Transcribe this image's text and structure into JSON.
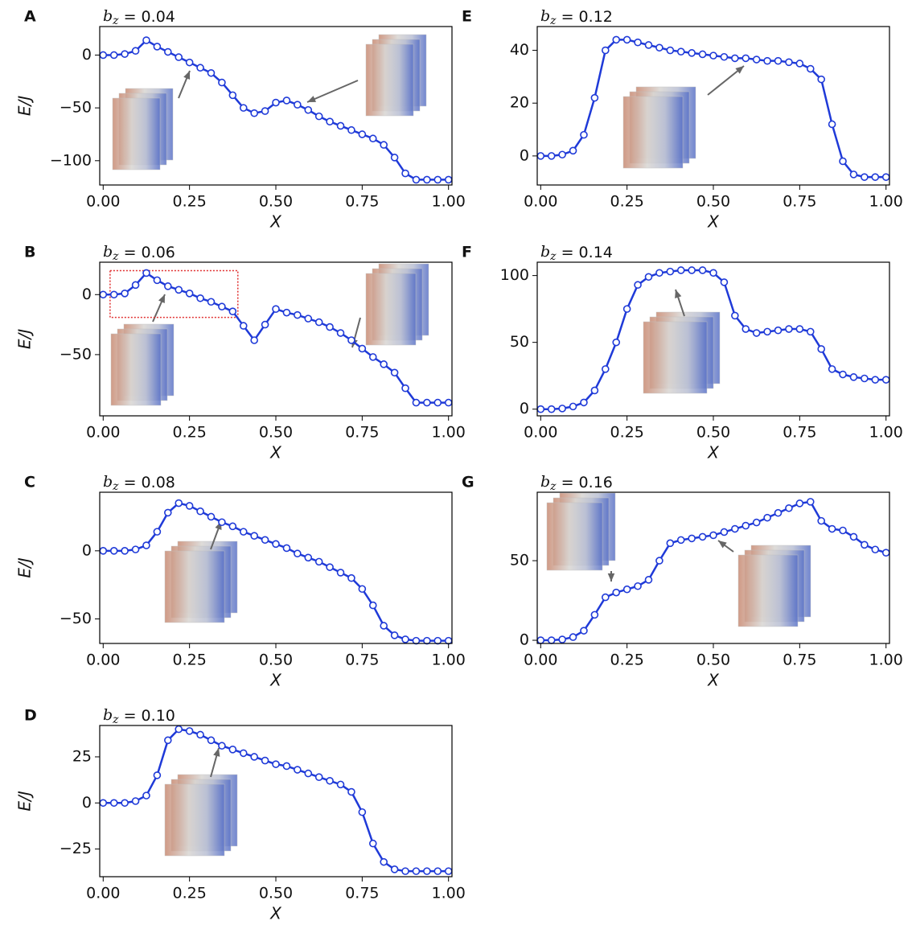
{
  "chart_data": [
    {
      "type": "line",
      "panel_label": "A",
      "title": [
        "b",
        "z",
        " = 0.04"
      ],
      "xlabel": "X",
      "ylabel": "E/J",
      "color": "#1f3ad8",
      "x": [
        0,
        0.03125,
        0.0625,
        0.09375,
        0.125,
        0.15625,
        0.1875,
        0.21875,
        0.25,
        0.28125,
        0.3125,
        0.34375,
        0.375,
        0.40625,
        0.4375,
        0.46875,
        0.5,
        0.53125,
        0.5625,
        0.59375,
        0.625,
        0.65625,
        0.6875,
        0.71875,
        0.75,
        0.78125,
        0.8125,
        0.84375,
        0.875,
        0.90625,
        0.9375,
        0.96875,
        1
      ],
      "values": [
        0,
        0,
        1,
        4,
        14,
        8,
        3,
        -2,
        -7,
        -12,
        -17,
        -26,
        -38,
        -50,
        -55,
        -53,
        -45,
        -43,
        -47,
        -52,
        -58,
        -63,
        -67,
        -71,
        -75,
        -79,
        -85,
        -97,
        -112,
        -118,
        -118,
        -118,
        -118
      ],
      "xlim": [
        -0.01,
        1.01
      ],
      "ylim": [
        -123,
        27
      ],
      "xticks": [
        {
          "value": 0,
          "label": "0.00"
        },
        {
          "value": 0.25,
          "label": "0.25"
        },
        {
          "value": 0.5,
          "label": "0.50"
        },
        {
          "value": 0.75,
          "label": "0.75"
        },
        {
          "value": 1,
          "label": "1.00"
        }
      ],
      "yticks": [
        {
          "value": -100,
          "label": "−100"
        },
        {
          "value": -50,
          "label": "−50"
        },
        0
      ]
    },
    {
      "type": "line",
      "panel_label": "B",
      "title": [
        "b",
        "z",
        " = 0.06"
      ],
      "xlabel": "X",
      "ylabel": "E/J",
      "color": "#1f3ad8",
      "x": [
        0,
        0.03125,
        0.0625,
        0.09375,
        0.125,
        0.15625,
        0.1875,
        0.21875,
        0.25,
        0.28125,
        0.3125,
        0.34375,
        0.375,
        0.40625,
        0.4375,
        0.46875,
        0.5,
        0.53125,
        0.5625,
        0.59375,
        0.625,
        0.65625,
        0.6875,
        0.71875,
        0.75,
        0.78125,
        0.8125,
        0.84375,
        0.875,
        0.90625,
        0.9375,
        0.96875,
        1
      ],
      "values": [
        0,
        0,
        1,
        8,
        18,
        12,
        7,
        4,
        1,
        -3,
        -6,
        -10,
        -14,
        -26,
        -38,
        -25,
        -12,
        -15,
        -17,
        -20,
        -23,
        -27,
        -32,
        -38,
        -45,
        -52,
        -58,
        -65,
        -78,
        -90,
        -90,
        -90,
        -90
      ],
      "xlim": [
        -0.01,
        1.01
      ],
      "ylim": [
        -101,
        27
      ],
      "xticks": [
        {
          "value": 0,
          "label": "0.00"
        },
        {
          "value": 0.25,
          "label": "0.25"
        },
        {
          "value": 0.5,
          "label": "0.50"
        },
        {
          "value": 0.75,
          "label": "0.75"
        },
        {
          "value": 1,
          "label": "1.00"
        }
      ],
      "yticks": [
        {
          "value": -50,
          "label": "−50"
        },
        0
      ]
    },
    {
      "type": "line",
      "panel_label": "C",
      "title": [
        "b",
        "z",
        " = 0.08"
      ],
      "xlabel": "X",
      "ylabel": "E/J",
      "color": "#1f3ad8",
      "x": [
        0,
        0.03125,
        0.0625,
        0.09375,
        0.125,
        0.15625,
        0.1875,
        0.21875,
        0.25,
        0.28125,
        0.3125,
        0.34375,
        0.375,
        0.40625,
        0.4375,
        0.46875,
        0.5,
        0.53125,
        0.5625,
        0.59375,
        0.625,
        0.65625,
        0.6875,
        0.71875,
        0.75,
        0.78125,
        0.8125,
        0.84375,
        0.875,
        0.90625,
        0.9375,
        0.96875,
        1
      ],
      "values": [
        0,
        0,
        0,
        1,
        4,
        14,
        28,
        35,
        33,
        29,
        25,
        21,
        18,
        14,
        11,
        8,
        5,
        2,
        -2,
        -5,
        -8,
        -12,
        -16,
        -20,
        -28,
        -40,
        -55,
        -62,
        -65,
        -66,
        -66,
        -66,
        -66
      ],
      "xlim": [
        -0.01,
        1.01
      ],
      "ylim": [
        -68,
        43
      ],
      "xticks": [
        {
          "value": 0,
          "label": "0.00"
        },
        {
          "value": 0.25,
          "label": "0.25"
        },
        {
          "value": 0.5,
          "label": "0.50"
        },
        {
          "value": 0.75,
          "label": "0.75"
        },
        {
          "value": 1,
          "label": "1.00"
        }
      ],
      "yticks": [
        {
          "value": -50,
          "label": "−50"
        },
        0
      ]
    },
    {
      "type": "line",
      "panel_label": "D",
      "title": [
        "b",
        "z",
        " = 0.10"
      ],
      "xlabel": "X",
      "ylabel": "E/J",
      "color": "#1f3ad8",
      "x": [
        0,
        0.03125,
        0.0625,
        0.09375,
        0.125,
        0.15625,
        0.1875,
        0.21875,
        0.25,
        0.28125,
        0.3125,
        0.34375,
        0.375,
        0.40625,
        0.4375,
        0.46875,
        0.5,
        0.53125,
        0.5625,
        0.59375,
        0.625,
        0.65625,
        0.6875,
        0.71875,
        0.75,
        0.78125,
        0.8125,
        0.84375,
        0.875,
        0.90625,
        0.9375,
        0.96875,
        1
      ],
      "values": [
        0,
        0,
        0,
        1,
        4,
        15,
        34,
        40,
        39,
        37,
        34,
        31,
        29,
        27,
        25,
        23,
        21,
        20,
        18,
        16,
        14,
        12,
        10,
        6,
        -5,
        -22,
        -32,
        -36,
        -37,
        -37,
        -37,
        -37,
        -37
      ],
      "xlim": [
        -0.01,
        1.01
      ],
      "ylim": [
        -40,
        42
      ],
      "xticks": [
        {
          "value": 0,
          "label": "0.00"
        },
        {
          "value": 0.25,
          "label": "0.25"
        },
        {
          "value": 0.5,
          "label": "0.50"
        },
        {
          "value": 0.75,
          "label": "0.75"
        },
        {
          "value": 1,
          "label": "1.00"
        }
      ],
      "yticks": [
        {
          "value": -25,
          "label": "−25"
        },
        0,
        25
      ]
    },
    {
      "type": "line",
      "panel_label": "E",
      "title": [
        "b",
        "z",
        " = 0.12"
      ],
      "xlabel": "X",
      "color": "#1f3ad8",
      "x": [
        0,
        0.03125,
        0.0625,
        0.09375,
        0.125,
        0.15625,
        0.1875,
        0.21875,
        0.25,
        0.28125,
        0.3125,
        0.34375,
        0.375,
        0.40625,
        0.4375,
        0.46875,
        0.5,
        0.53125,
        0.5625,
        0.59375,
        0.625,
        0.65625,
        0.6875,
        0.71875,
        0.75,
        0.78125,
        0.8125,
        0.84375,
        0.875,
        0.90625,
        0.9375,
        0.96875,
        1
      ],
      "values": [
        0,
        0,
        0.5,
        2,
        8,
        22,
        40,
        44,
        44,
        43,
        42,
        41,
        40,
        39.5,
        39,
        38.5,
        38,
        37.5,
        37,
        37,
        36.5,
        36,
        36,
        35.5,
        35,
        33,
        29,
        12,
        -2,
        -7,
        -8,
        -8,
        -8
      ],
      "xlim": [
        -0.01,
        1.01
      ],
      "ylim": [
        -11,
        49
      ],
      "xticks": [
        {
          "value": 0,
          "label": "0.00"
        },
        {
          "value": 0.25,
          "label": "0.25"
        },
        {
          "value": 0.5,
          "label": "0.50"
        },
        {
          "value": 0.75,
          "label": "0.75"
        },
        {
          "value": 1,
          "label": "1.00"
        }
      ],
      "yticks": [
        0,
        20,
        40
      ]
    },
    {
      "type": "line",
      "panel_label": "F",
      "title": [
        "b",
        "z",
        " = 0.14"
      ],
      "xlabel": "X",
      "color": "#1f3ad8",
      "x": [
        0,
        0.03125,
        0.0625,
        0.09375,
        0.125,
        0.15625,
        0.1875,
        0.21875,
        0.25,
        0.28125,
        0.3125,
        0.34375,
        0.375,
        0.40625,
        0.4375,
        0.46875,
        0.5,
        0.53125,
        0.5625,
        0.59375,
        0.625,
        0.65625,
        0.6875,
        0.71875,
        0.75,
        0.78125,
        0.8125,
        0.84375,
        0.875,
        0.90625,
        0.9375,
        0.96875,
        1
      ],
      "values": [
        0,
        0,
        0.5,
        2,
        5,
        14,
        30,
        50,
        75,
        93,
        99,
        102,
        103,
        104,
        104,
        104,
        102,
        95,
        70,
        60,
        57,
        58,
        59,
        60,
        60,
        58,
        45,
        30,
        26,
        24,
        23,
        22,
        22
      ],
      "xlim": [
        -0.01,
        1.01
      ],
      "ylim": [
        -5,
        110
      ],
      "xticks": [
        {
          "value": 0,
          "label": "0.00"
        },
        {
          "value": 0.25,
          "label": "0.25"
        },
        {
          "value": 0.5,
          "label": "0.50"
        },
        {
          "value": 0.75,
          "label": "0.75"
        },
        {
          "value": 1,
          "label": "1.00"
        }
      ],
      "yticks": [
        0,
        50,
        100
      ]
    },
    {
      "type": "line",
      "panel_label": "G",
      "title": [
        "b",
        "z",
        " = 0.16"
      ],
      "xlabel": "X",
      "color": "#1f3ad8",
      "x": [
        0,
        0.03125,
        0.0625,
        0.09375,
        0.125,
        0.15625,
        0.1875,
        0.21875,
        0.25,
        0.28125,
        0.3125,
        0.34375,
        0.375,
        0.40625,
        0.4375,
        0.46875,
        0.5,
        0.53125,
        0.5625,
        0.59375,
        0.625,
        0.65625,
        0.6875,
        0.71875,
        0.75,
        0.78125,
        0.8125,
        0.84375,
        0.875,
        0.90625,
        0.9375,
        0.96875,
        1
      ],
      "values": [
        0,
        0,
        0.5,
        2,
        6,
        16,
        27,
        30,
        32,
        34,
        38,
        50,
        61,
        63,
        64,
        65,
        66,
        68,
        70,
        72,
        74,
        77,
        80,
        83,
        86,
        87,
        75,
        70,
        69,
        65,
        60,
        57,
        55
      ],
      "xlim": [
        -0.01,
        1.01
      ],
      "ylim": [
        -2,
        93
      ],
      "xticks": [
        {
          "value": 0,
          "label": "0.00"
        },
        {
          "value": 0.25,
          "label": "0.25"
        },
        {
          "value": 0.5,
          "label": "0.50"
        },
        {
          "value": 0.75,
          "label": "0.75"
        },
        {
          "value": 1,
          "label": "1.00"
        }
      ],
      "yticks": [
        0,
        50
      ]
    }
  ]
}
